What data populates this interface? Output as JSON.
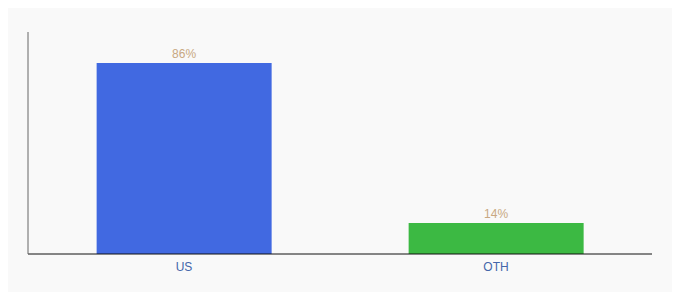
{
  "chart_data": {
    "type": "bar",
    "categories": [
      "US",
      "OTH"
    ],
    "values": [
      86,
      14
    ],
    "value_labels": [
      "86%",
      "14%"
    ],
    "colors": [
      "#4169E1",
      "#3CB943"
    ],
    "ylim": [
      0,
      100
    ],
    "data_labels": true,
    "tick_labels": "x",
    "grid": false
  }
}
